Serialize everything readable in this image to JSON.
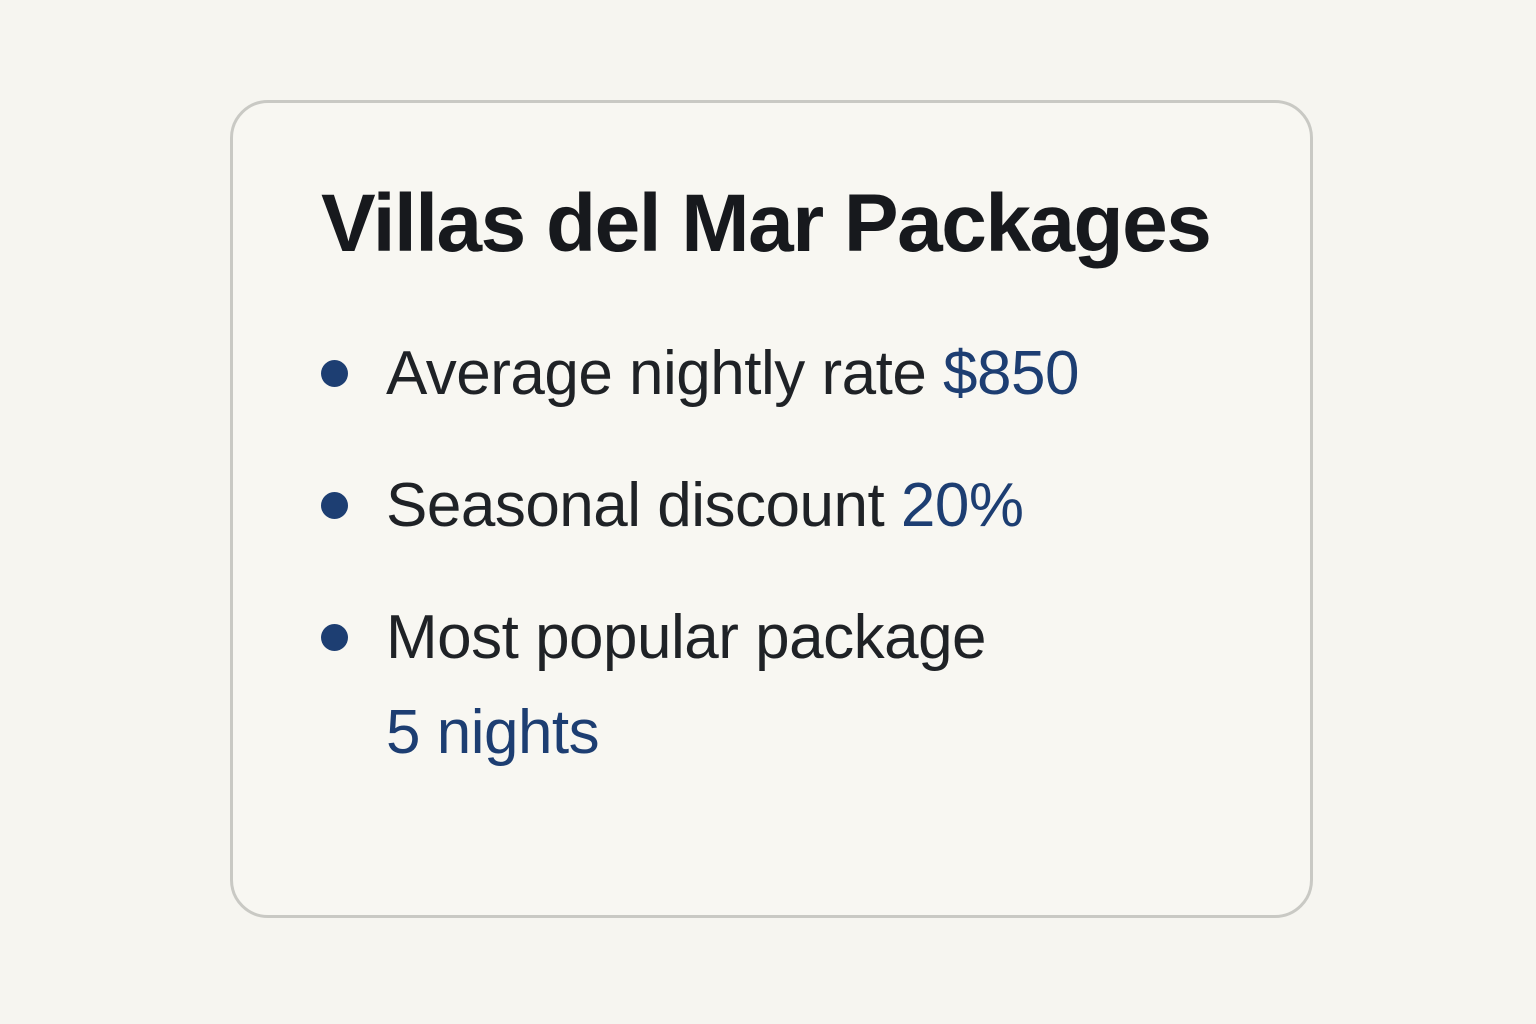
{
  "page": {
    "background_color": "#f6f5f0"
  },
  "card": {
    "title": "Villas del Mar Packages",
    "border_color": "#c9c9c4",
    "background_color": "#f8f7f2",
    "title_color": "#17191d",
    "text_color": "#1f2226",
    "accent_color": "#1d3e72",
    "items": [
      {
        "label": "Average nightly rate",
        "value": "$850",
        "value_on_new_line": false
      },
      {
        "label": "Seasonal discount",
        "value": "20%",
        "value_on_new_line": false
      },
      {
        "label": "Most popular package",
        "value": "5 nights",
        "value_on_new_line": true
      }
    ]
  }
}
